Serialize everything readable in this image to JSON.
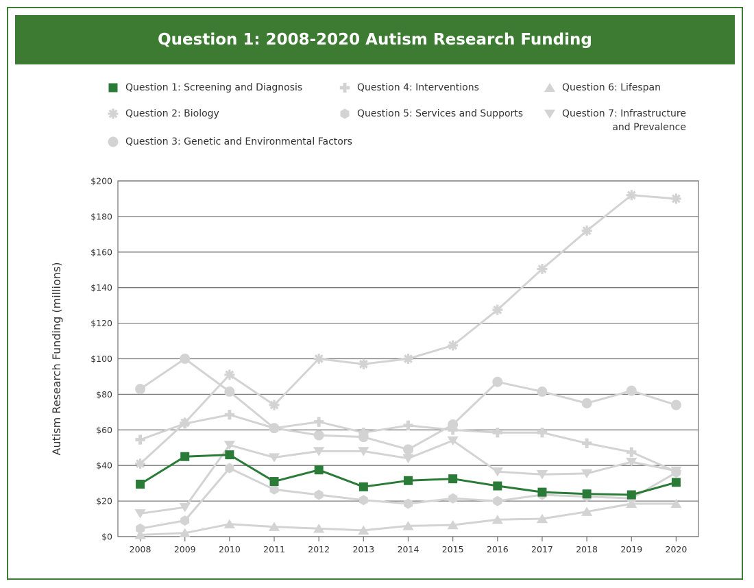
{
  "colors": {
    "brand": "#3d7a32",
    "highlight": "#2a7a38",
    "muted": "#d3d3d3",
    "grid": "#7a7a7a"
  },
  "chart_data": {
    "type": "line",
    "title": "Question 1: 2008-2020 Autism Research Funding",
    "xlabel": "",
    "ylabel": "Autism Research Funding (millions)",
    "x": [
      "2008",
      "2009",
      "2010",
      "2011",
      "2012",
      "2013",
      "2014",
      "2015",
      "2016",
      "2017",
      "2018",
      "2019",
      "2020"
    ],
    "ylim": [
      0,
      200
    ],
    "yticks": [
      0,
      20,
      40,
      60,
      80,
      100,
      120,
      140,
      160,
      180,
      200
    ],
    "ytick_labels": [
      "$0",
      "$20",
      "$40",
      "$60",
      "$80",
      "$100",
      "$120",
      "$140",
      "$160",
      "$180",
      "$200"
    ],
    "grid": true,
    "legend_position": "top",
    "series": [
      {
        "name": "Question 1: Screening and Diagnosis",
        "marker": "square",
        "color": "#2a7a38",
        "values": [
          29.5,
          45,
          46,
          31,
          37.5,
          28,
          31.5,
          32.5,
          28.5,
          25,
          24,
          23.5,
          30.5
        ]
      },
      {
        "name": "Question 2: Biology",
        "marker": "asterisk",
        "color": "#d3d3d3",
        "values": [
          41,
          64,
          91,
          74,
          100,
          97,
          100,
          107.5,
          127.5,
          150.5,
          172,
          192,
          190
        ]
      },
      {
        "name": "Question 3: Genetic and Environmental Factors",
        "marker": "circle",
        "color": "#d3d3d3",
        "values": [
          83,
          100,
          81.5,
          61,
          57,
          56,
          49,
          63,
          87,
          81.5,
          75,
          82,
          74
        ]
      },
      {
        "name": "Question 4: Interventions",
        "marker": "plus",
        "color": "#d3d3d3",
        "values": [
          54.5,
          63.5,
          68.5,
          61,
          64.5,
          58.5,
          62.5,
          60,
          58.5,
          58.5,
          52.5,
          47.5,
          36.5
        ]
      },
      {
        "name": "Question 5: Services and Supports",
        "marker": "hexagon",
        "color": "#d3d3d3",
        "values": [
          4.5,
          9,
          38.5,
          26.5,
          23.5,
          20.5,
          18.5,
          21.5,
          20,
          23.5,
          22.5,
          21.5,
          36
        ]
      },
      {
        "name": "Question 6: Lifespan",
        "marker": "triangle-up",
        "color": "#d3d3d3",
        "values": [
          1,
          2,
          7,
          5.5,
          4.5,
          3.5,
          6,
          6.5,
          9.5,
          10,
          14,
          18.5,
          18.5
        ]
      },
      {
        "name": "Question 7: Infrastructure and Prevalence",
        "marker": "triangle-down",
        "color": "#d3d3d3",
        "values": [
          13,
          16.5,
          51.5,
          44.5,
          48,
          48,
          44,
          54,
          36.5,
          35,
          35.5,
          42,
          37
        ]
      }
    ]
  },
  "legend": [
    {
      "marker": "square",
      "color": "#2a7a38",
      "lines": [
        "Question 1: Screening and Diagnosis"
      ]
    },
    {
      "marker": "plus",
      "color": "#d3d3d3",
      "lines": [
        "Question 4: Interventions"
      ]
    },
    {
      "marker": "triangle-up",
      "color": "#d3d3d3",
      "lines": [
        "Question 6: Lifespan"
      ]
    },
    {
      "marker": "asterisk",
      "color": "#d3d3d3",
      "lines": [
        "Question 2: Biology"
      ]
    },
    {
      "marker": "hexagon",
      "color": "#d3d3d3",
      "lines": [
        "Question 5: Services and Supports"
      ]
    },
    {
      "marker": "triangle-down",
      "color": "#d3d3d3",
      "lines": [
        "Question 7: Infrastructure",
        "and Prevalence"
      ]
    },
    {
      "marker": "circle",
      "color": "#d3d3d3",
      "lines": [
        "Question 3: Genetic and Environmental Factors"
      ]
    }
  ]
}
